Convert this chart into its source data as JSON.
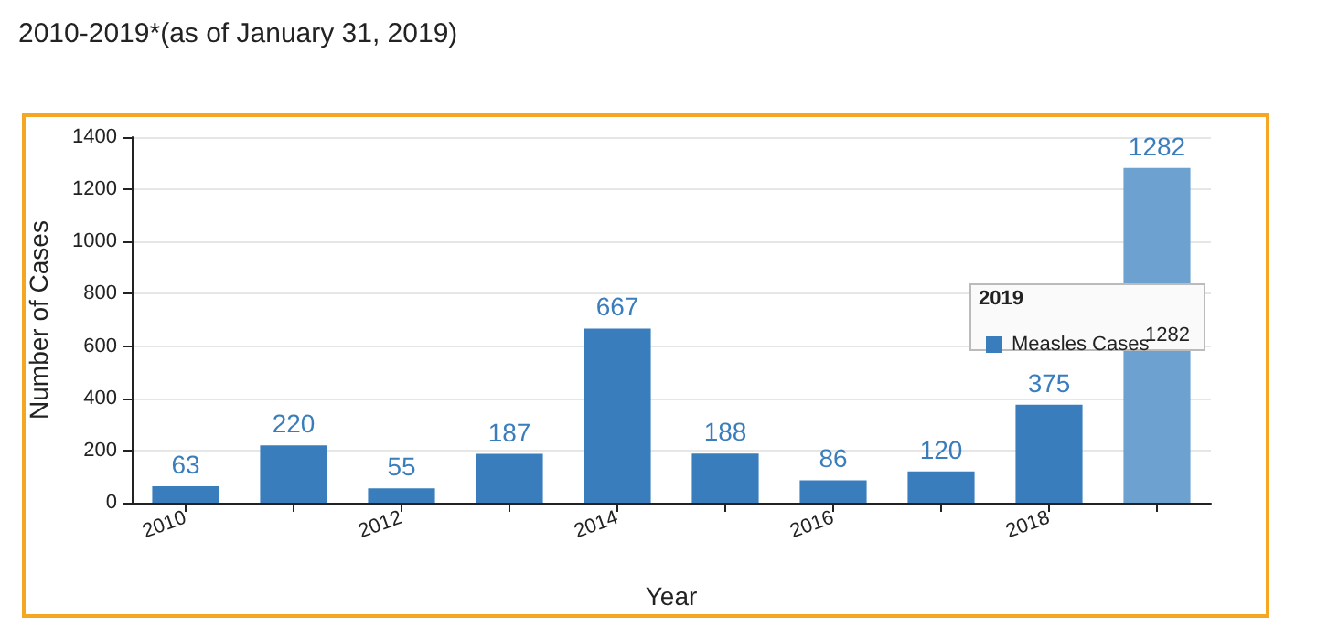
{
  "chart_data": {
    "type": "bar",
    "title": "2010-2019*(as of January 31, 2019)",
    "xlabel": "Year",
    "ylabel": "Number of Cases",
    "categories": [
      "2010",
      null,
      "2012",
      null,
      "2014",
      null,
      "2016",
      null,
      "2018",
      null
    ],
    "series": [
      {
        "name": "Measles Cases",
        "color": "#3a7dbd",
        "colors": [
          "#3a7dbd",
          "#3a7dbd",
          "#3a7dbd",
          "#3a7dbd",
          "#3a7dbd",
          "#3a7dbd",
          "#3a7dbd",
          "#3a7dbd",
          "#3a7dbd",
          "#6ca1d0"
        ],
        "values": [
          63,
          220,
          55,
          187,
          667,
          188,
          86,
          120,
          375,
          1282
        ]
      }
    ],
    "ylim": [
      0,
      1400
    ],
    "yticks": [
      0,
      200,
      400,
      600,
      800,
      1000,
      1200,
      1400
    ],
    "annotations": [
      "2019",
      "1282"
    ],
    "data_labels": true,
    "grid": "y",
    "legend": "right"
  }
}
